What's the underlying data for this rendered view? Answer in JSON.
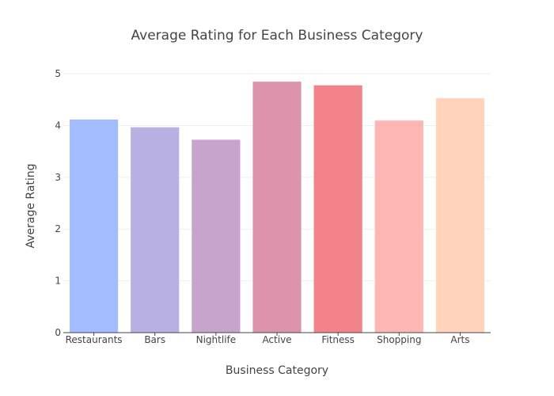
{
  "chart_data": {
    "type": "bar",
    "title": "Average Rating for Each Business Category",
    "xlabel": "Business Category",
    "ylabel": "Average Rating",
    "categories": [
      "Restaurants",
      "Bars",
      "Nightlife",
      "Active",
      "Fitness",
      "Shopping",
      "Arts"
    ],
    "values": [
      4.12,
      3.97,
      3.73,
      4.85,
      4.78,
      4.1,
      4.53
    ],
    "colors": [
      "#a3bcff",
      "#b9b0e3",
      "#c7a4cc",
      "#dc94ad",
      "#f2838b",
      "#fdb6b4",
      "#ffd4bb"
    ],
    "ylim": [
      0,
      5.2
    ],
    "yticks": [
      0,
      1,
      2,
      3,
      4,
      5
    ],
    "ytick_labels": [
      "0",
      "1",
      "2",
      "3",
      "4",
      "5"
    ],
    "grid": true,
    "legend": "none"
  }
}
